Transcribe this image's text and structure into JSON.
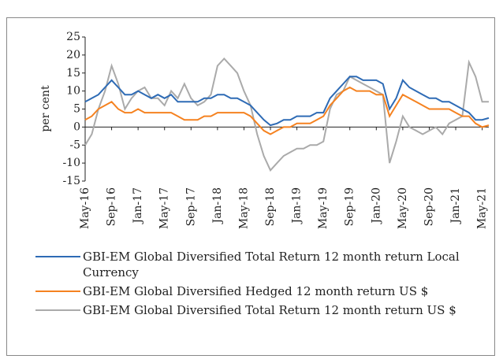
{
  "chart_data": {
    "type": "line",
    "ylabel": "per cent",
    "categories": [
      "May-16",
      null,
      null,
      null,
      "Sep-16",
      null,
      null,
      null,
      "Jan-17",
      null,
      null,
      null,
      "May-17",
      null,
      null,
      null,
      "Sep-17",
      null,
      null,
      null,
      "Jan-18",
      null,
      null,
      null,
      "May-18",
      null,
      null,
      null,
      "Sep-18",
      null,
      null,
      null,
      "Jan-19",
      null,
      null,
      null,
      "May-19",
      null,
      null,
      null,
      "Sep-19",
      null,
      null,
      null,
      "Jan-20",
      null,
      null,
      null,
      "May-20",
      null,
      null,
      null,
      "Sep-20",
      null,
      null,
      null,
      "Jan-21",
      null,
      null,
      null,
      "May-21",
      null
    ],
    "series": [
      {
        "name": "GBI-EM Global Diversified Total Return 12 month return Local Currency",
        "color": "#2e6bb5",
        "values": [
          7,
          8,
          9,
          11,
          13,
          11,
          9,
          9,
          10,
          9,
          8,
          9,
          8,
          9,
          7,
          7,
          7,
          7,
          8,
          8,
          9,
          9,
          8,
          8,
          7,
          6,
          4,
          2,
          0.5,
          1,
          2,
          2,
          3,
          3,
          3,
          4,
          4,
          8,
          10,
          12,
          14,
          14,
          13,
          13,
          13,
          12,
          5,
          8,
          13,
          11,
          10,
          9,
          8,
          8,
          7,
          7,
          6,
          5,
          4,
          2,
          2,
          2.5
        ]
      },
      {
        "name": "GBI-EM Global Diversified Hedged 12 month return US $",
        "color": "#f58220",
        "values": [
          2,
          3,
          5,
          6,
          7,
          5,
          4,
          4,
          5,
          4,
          4,
          4,
          4,
          4,
          3,
          2,
          2,
          2,
          3,
          3,
          4,
          4,
          4,
          4,
          4,
          3,
          1,
          -1,
          -2,
          -1,
          0,
          0,
          1,
          1,
          1,
          2,
          3,
          6,
          8,
          10,
          11,
          10,
          10,
          10,
          9,
          9,
          3,
          6,
          9,
          8,
          7,
          6,
          5,
          5,
          5,
          5,
          4,
          3,
          3,
          1,
          0,
          0.5
        ]
      },
      {
        "name": "GBI-EM Global Diversified Total Return 12 month return US $",
        "color": "#aaaaaa",
        "values": [
          -5,
          -2,
          5,
          10,
          17,
          12,
          5,
          8,
          10,
          11,
          8,
          8,
          6,
          10,
          8,
          12,
          8,
          6,
          7,
          9,
          17,
          19,
          17,
          15,
          10,
          6,
          -2,
          -8,
          -12,
          -10,
          -8,
          -7,
          -6,
          -6,
          -5,
          -5,
          -4,
          5,
          9,
          10,
          14,
          13,
          12,
          11,
          10,
          9,
          -10,
          -4,
          3,
          0,
          -1,
          -2,
          -1,
          0,
          -2,
          1,
          2,
          3,
          18,
          14,
          7,
          7
        ]
      }
    ],
    "ylim": [
      -15,
      25
    ],
    "yticks": [
      -15,
      -10,
      -5,
      0,
      5,
      10,
      15,
      20,
      25
    ]
  }
}
